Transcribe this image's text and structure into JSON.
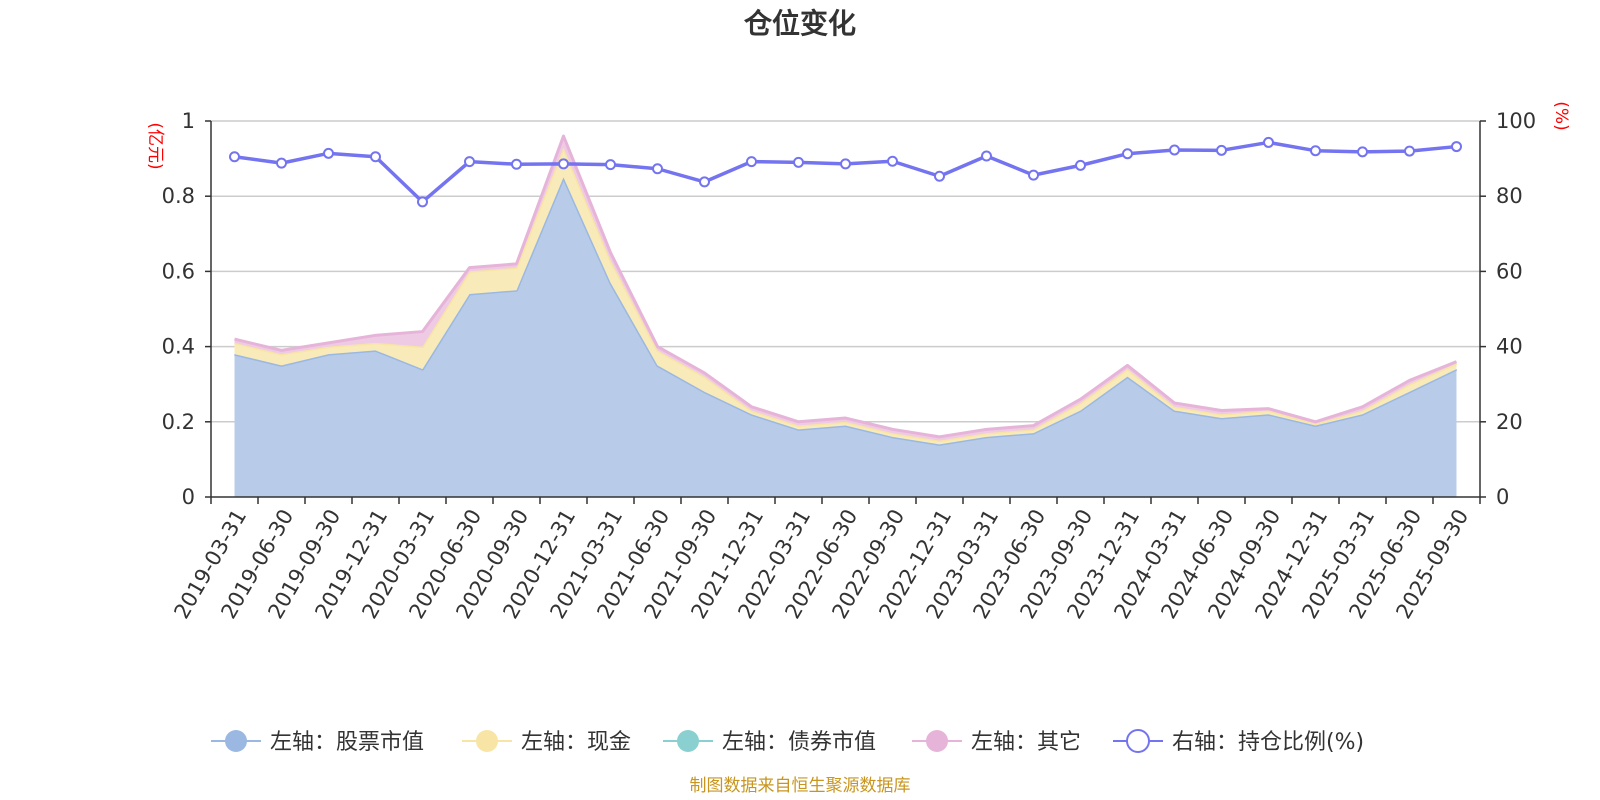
{
  "chart_data": {
    "type": "area",
    "title": "仓位变化",
    "left_axis": {
      "unit": "(亿元)",
      "min": 0,
      "max": 1,
      "ticks": [
        0,
        0.2,
        0.4,
        0.6,
        0.8,
        1
      ],
      "tick_labels": [
        "0",
        "0.2",
        "0.4",
        "0.6",
        "0.8",
        "1"
      ]
    },
    "right_axis": {
      "unit": "(%)",
      "min": 0,
      "max": 100,
      "ticks": [
        0,
        20,
        40,
        60,
        80,
        100
      ],
      "tick_labels": [
        "0",
        "20",
        "40",
        "60",
        "80",
        "100"
      ]
    },
    "categories": [
      "2019-03-31",
      "2019-06-30",
      "2019-09-30",
      "2019-12-31",
      "2020-03-31",
      "2020-06-30",
      "2020-09-30",
      "2020-12-31",
      "2021-03-31",
      "2021-06-30",
      "2021-09-30",
      "2021-12-31",
      "2022-03-31",
      "2022-06-30",
      "2022-09-30",
      "2022-12-31",
      "2023-03-31",
      "2023-06-30",
      "2023-09-30",
      "2023-12-31",
      "2024-03-31",
      "2024-06-30",
      "2024-09-30",
      "2024-12-31",
      "2025-03-31",
      "2025-06-30",
      "2025-09-30"
    ],
    "series": [
      {
        "name": "左轴：股票市值",
        "axis": "left",
        "color": "#9bb8e2",
        "fill": "#b8cce9",
        "values": [
          0.38,
          0.35,
          0.38,
          0.39,
          0.34,
          0.54,
          0.55,
          0.85,
          0.57,
          0.35,
          0.28,
          0.22,
          0.18,
          0.19,
          0.16,
          0.14,
          0.16,
          0.17,
          0.23,
          0.32,
          0.23,
          0.21,
          0.22,
          0.19,
          0.22,
          0.28,
          0.34
        ]
      },
      {
        "name": "左轴：现金",
        "axis": "left",
        "color": "#f8e5a5",
        "fill": "#f8ebb9",
        "values": [
          0.03,
          0.03,
          0.02,
          0.02,
          0.06,
          0.06,
          0.06,
          0.08,
          0.06,
          0.04,
          0.04,
          0.01,
          0.01,
          0.01,
          0.01,
          0.01,
          0.01,
          0.01,
          0.02,
          0.02,
          0.01,
          0.01,
          0.01,
          0.005,
          0.01,
          0.02,
          0.015
        ]
      },
      {
        "name": "左轴：债券市值",
        "axis": "left",
        "color": "#8ad0d0",
        "fill": "#a6dcdc",
        "values": [
          0,
          0,
          0,
          0,
          0,
          0,
          0,
          0,
          0,
          0,
          0,
          0,
          0,
          0,
          0,
          0,
          0,
          0,
          0,
          0,
          0,
          0,
          0,
          0,
          0,
          0,
          0
        ]
      },
      {
        "name": "左轴：其它",
        "axis": "left",
        "color": "#e6b4d9",
        "fill": "#efcae4",
        "values": [
          0.01,
          0.01,
          0.01,
          0.02,
          0.04,
          0.01,
          0.01,
          0.03,
          0.02,
          0.01,
          0.01,
          0.01,
          0.01,
          0.01,
          0.01,
          0.01,
          0.01,
          0.01,
          0.01,
          0.01,
          0.01,
          0.01,
          0.005,
          0.005,
          0.01,
          0.01,
          0.005
        ]
      },
      {
        "name": "右轴：持仓比例(%)",
        "axis": "right",
        "type": "line",
        "color": "#7474f0",
        "values": [
          90.5,
          88.8,
          91.4,
          90.5,
          78.5,
          89.2,
          88.5,
          88.6,
          88.4,
          87.3,
          83.8,
          89.2,
          89.0,
          88.6,
          89.3,
          85.3,
          90.7,
          85.6,
          88.2,
          91.3,
          92.3,
          92.2,
          94.3,
          92.1,
          91.8,
          92.0,
          93.2
        ]
      }
    ],
    "legend_position": "bottom",
    "grid": true
  },
  "footer": "制图数据来自恒生聚源数据库"
}
